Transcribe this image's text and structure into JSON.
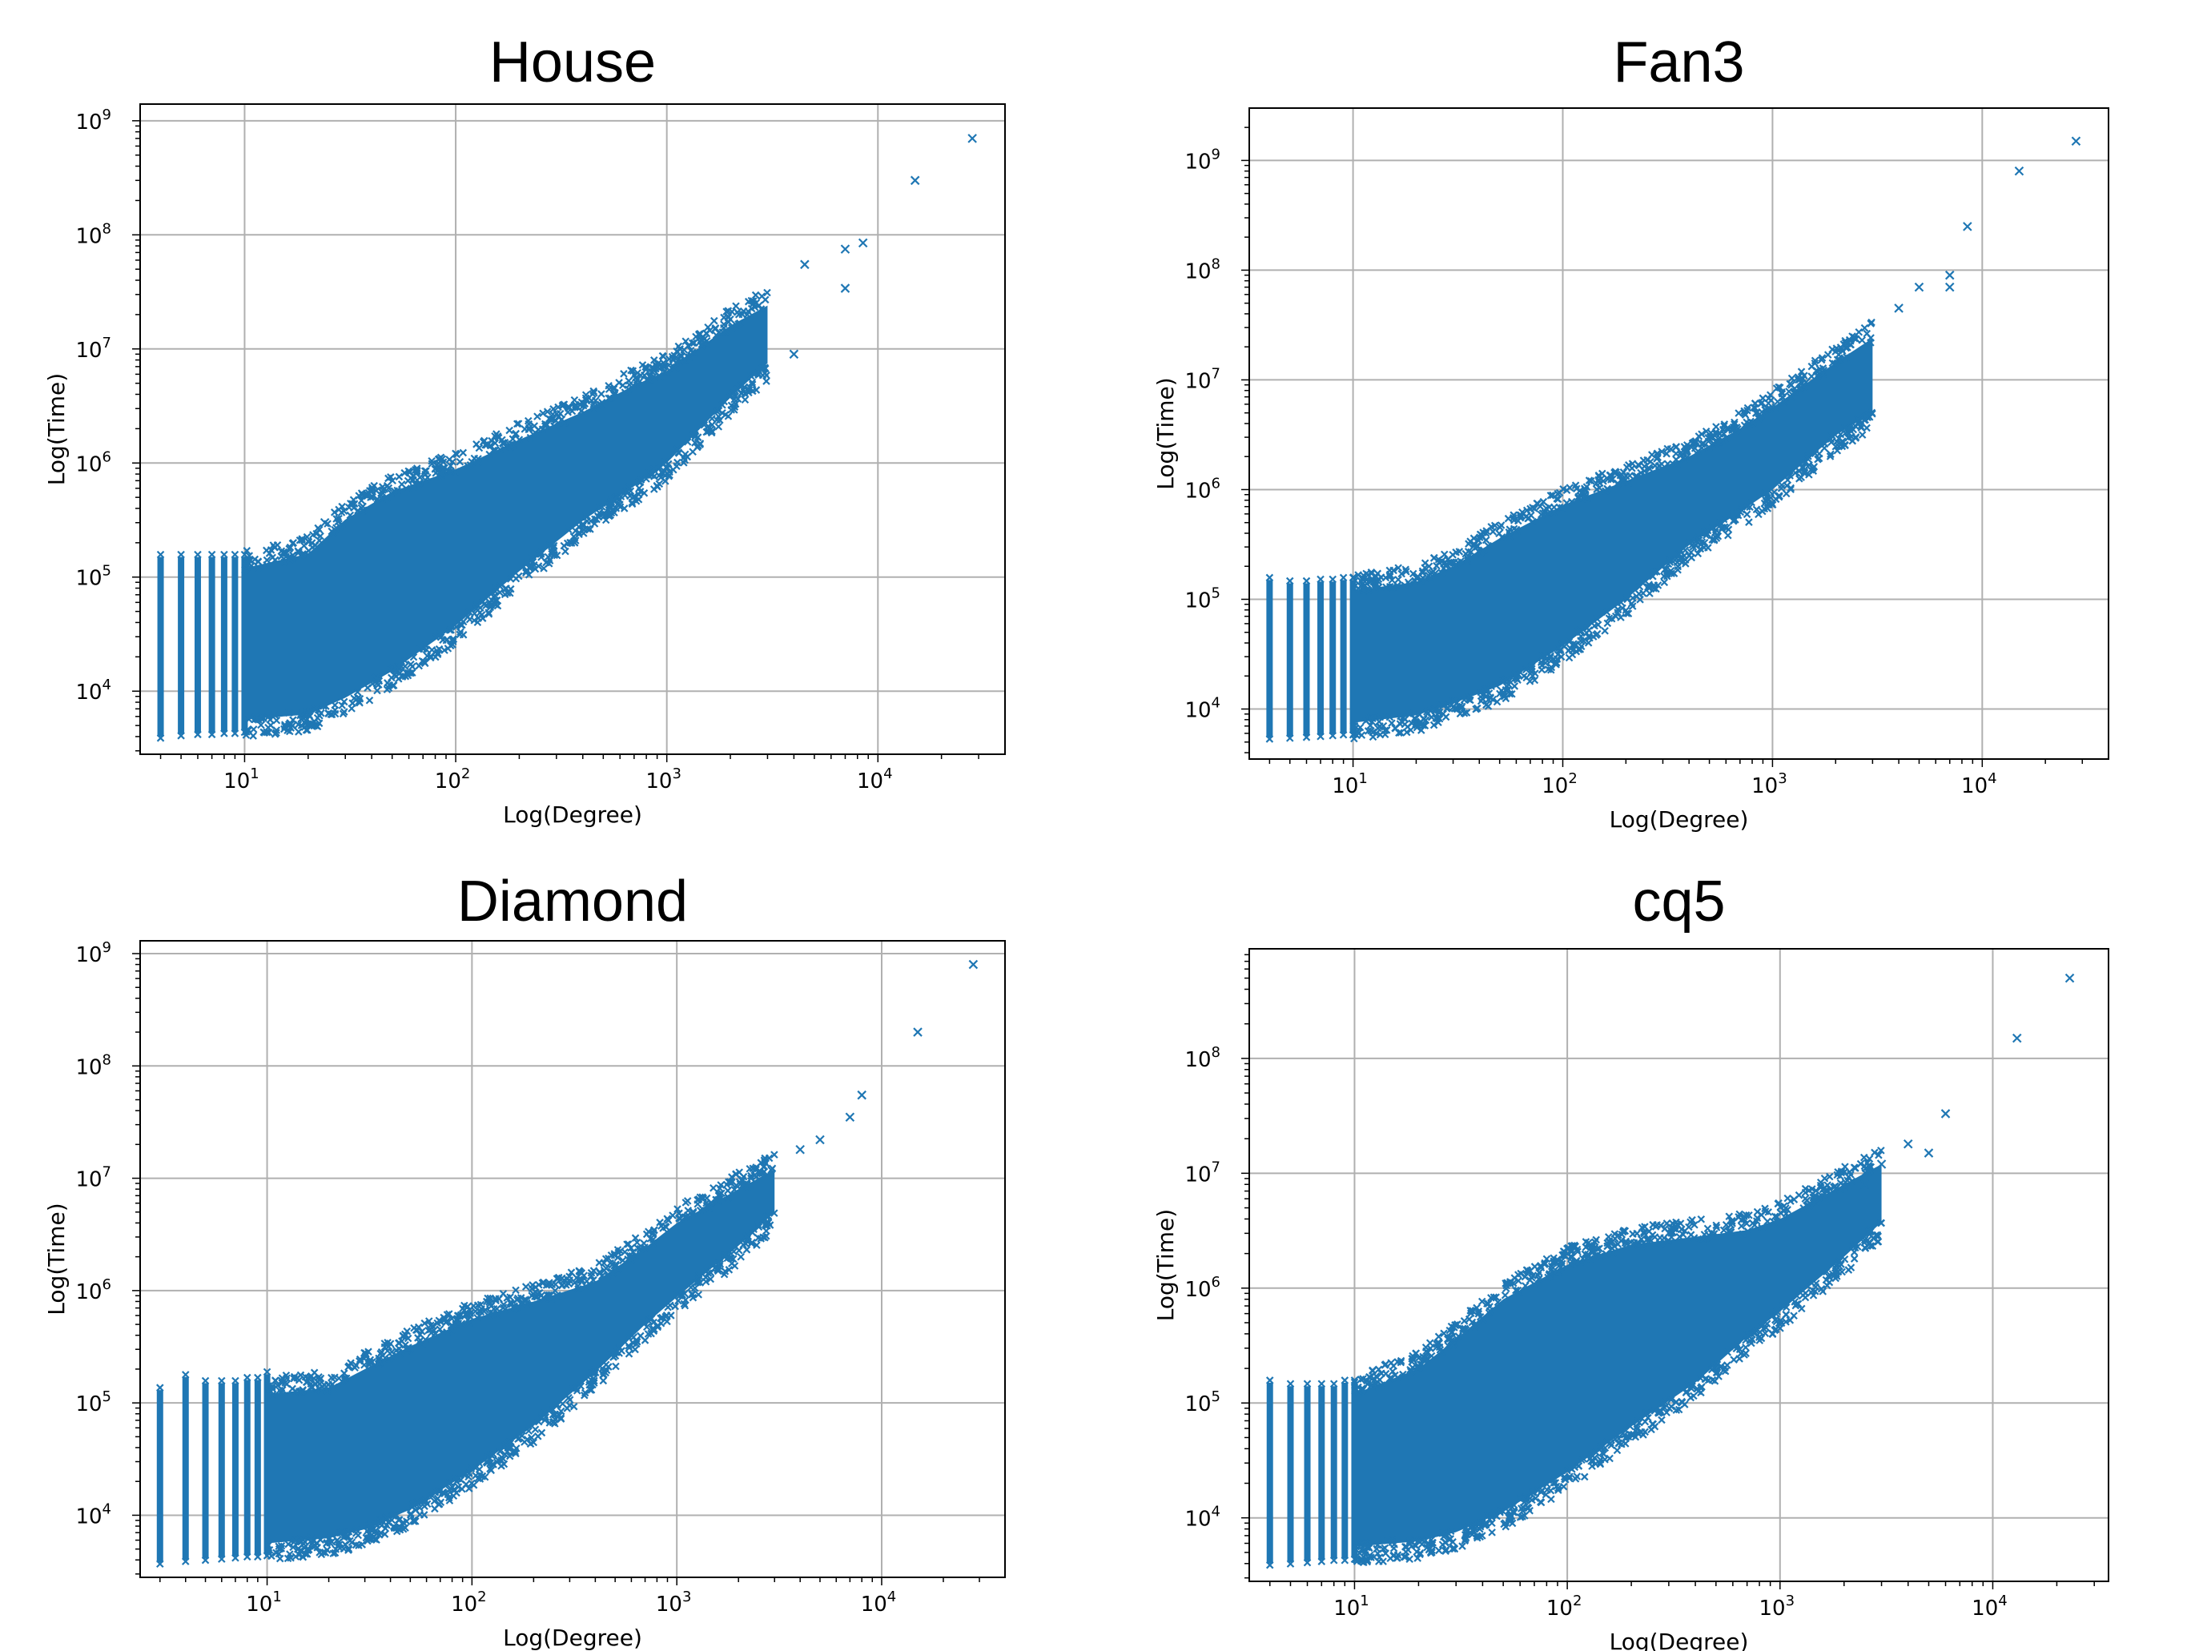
{
  "chart_data": [
    {
      "type": "scatter",
      "title": "House",
      "xlabel": "Log(Degree)",
      "ylabel": "Log(Time)",
      "xscale": "log",
      "yscale": "log",
      "xlim": [
        3.2,
        40000
      ],
      "ylim": [
        2800,
        1400000000
      ],
      "xticks": [
        10,
        100,
        1000,
        10000
      ],
      "xtick_labels": [
        "10",
        "10",
        "10",
        "10"
      ],
      "xtick_exps": [
        "1",
        "2",
        "3",
        "4"
      ],
      "yticks": [
        10000,
        100000,
        1000000,
        10000000,
        100000000,
        1000000000
      ],
      "ytick_labels": [
        "10",
        "10",
        "10",
        "10",
        "10",
        "10"
      ],
      "ytick_exps": [
        "4",
        "5",
        "6",
        "7",
        "8",
        "9"
      ],
      "grid": true,
      "marker": "x",
      "color": "#1f77b4",
      "columns_x": [
        4,
        5,
        6,
        7,
        8,
        9,
        10
      ],
      "column_ranges": [
        [
          4000,
          150000
        ],
        [
          4200,
          150000
        ],
        [
          4300,
          150000
        ],
        [
          4300,
          150000
        ],
        [
          4400,
          150000
        ],
        [
          4400,
          150000
        ],
        [
          4500,
          150000
        ]
      ],
      "band": [
        [
          10,
          4500,
          150000
        ],
        [
          20,
          5000,
          200000
        ],
        [
          30,
          7000,
          400000
        ],
        [
          50,
          12000,
          700000
        ],
        [
          100,
          30000,
          1100000
        ],
        [
          200,
          90000,
          2000000
        ],
        [
          400,
          250000,
          3500000
        ],
        [
          700,
          500000,
          6000000
        ],
        [
          1000,
          800000,
          8000000
        ],
        [
          2000,
          3000000,
          20000000
        ],
        [
          3000,
          6000000,
          30000000
        ]
      ],
      "outliers": [
        [
          15000,
          300000000
        ],
        [
          28000,
          700000000
        ],
        [
          8500,
          85000000
        ],
        [
          7000,
          75000000
        ],
        [
          7000,
          34000000
        ],
        [
          4500,
          55000000
        ],
        [
          4000,
          9000000
        ],
        [
          24,
          300000
        ]
      ]
    },
    {
      "type": "scatter",
      "title": "Fan3",
      "xlabel": "Log(Degree)",
      "ylabel": "Log(Time)",
      "xscale": "log",
      "yscale": "log",
      "xlim": [
        3.2,
        40000
      ],
      "ylim": [
        3500,
        3000000000
      ],
      "xticks": [
        10,
        100,
        1000,
        10000
      ],
      "xtick_labels": [
        "10",
        "10",
        "10",
        "10"
      ],
      "xtick_exps": [
        "1",
        "2",
        "3",
        "4"
      ],
      "yticks": [
        10000,
        100000,
        1000000,
        10000000,
        100000000,
        1000000000
      ],
      "ytick_labels": [
        "10",
        "10",
        "10",
        "10",
        "10",
        "10"
      ],
      "ytick_exps": [
        "4",
        "5",
        "6",
        "7",
        "8",
        "9"
      ],
      "grid": true,
      "marker": "x",
      "color": "#1f77b4",
      "columns_x": [
        4,
        5,
        6,
        7,
        8,
        9,
        10
      ],
      "column_ranges": [
        [
          5500,
          150000
        ],
        [
          5600,
          140000
        ],
        [
          5700,
          140000
        ],
        [
          5800,
          145000
        ],
        [
          5900,
          145000
        ],
        [
          6000,
          150000
        ],
        [
          6000,
          150000
        ]
      ],
      "band": [
        [
          10,
          6000,
          150000
        ],
        [
          20,
          7000,
          180000
        ],
        [
          30,
          9000,
          250000
        ],
        [
          50,
          13000,
          450000
        ],
        [
          100,
          30000,
          900000
        ],
        [
          200,
          80000,
          1500000
        ],
        [
          400,
          250000,
          2500000
        ],
        [
          700,
          500000,
          4500000
        ],
        [
          1000,
          800000,
          7000000
        ],
        [
          2000,
          2500000,
          18000000
        ],
        [
          3000,
          4000000,
          30000000
        ]
      ],
      "outliers": [
        [
          28000,
          1500000000
        ],
        [
          15000,
          800000000
        ],
        [
          8500,
          250000000
        ],
        [
          7000,
          90000000
        ],
        [
          7000,
          70000000
        ],
        [
          5000,
          70000000
        ],
        [
          4000,
          45000000
        ]
      ]
    },
    {
      "type": "scatter",
      "title": "Diamond",
      "xlabel": "Log(Degree)",
      "ylabel": "Log(Time)",
      "xscale": "log",
      "yscale": "log",
      "xlim": [
        2.4,
        40000
      ],
      "ylim": [
        2800,
        1300000000
      ],
      "xticks": [
        10,
        100,
        1000,
        10000
      ],
      "xtick_labels": [
        "10",
        "10",
        "10",
        "10"
      ],
      "xtick_exps": [
        "1",
        "2",
        "3",
        "4"
      ],
      "yticks": [
        10000,
        100000,
        1000000,
        10000000,
        100000000,
        1000000000
      ],
      "ytick_labels": [
        "10",
        "10",
        "10",
        "10",
        "10",
        "10"
      ],
      "ytick_exps": [
        "4",
        "5",
        "6",
        "7",
        "8",
        "9"
      ],
      "grid": true,
      "marker": "x",
      "color": "#1f77b4",
      "columns_x": [
        3,
        4,
        5,
        6,
        7,
        8,
        9,
        10
      ],
      "column_ranges": [
        [
          3800,
          130000
        ],
        [
          4000,
          170000
        ],
        [
          4100,
          150000
        ],
        [
          4200,
          150000
        ],
        [
          4300,
          150000
        ],
        [
          4400,
          160000
        ],
        [
          4400,
          160000
        ],
        [
          4500,
          180000
        ]
      ],
      "band": [
        [
          10,
          4500,
          150000
        ],
        [
          20,
          5000,
          170000
        ],
        [
          30,
          6000,
          250000
        ],
        [
          50,
          9000,
          400000
        ],
        [
          100,
          20000,
          700000
        ],
        [
          200,
          50000,
          1000000
        ],
        [
          400,
          150000,
          1500000
        ],
        [
          700,
          400000,
          3000000
        ],
        [
          1000,
          700000,
          5000000
        ],
        [
          2000,
          2000000,
          10000000
        ],
        [
          3000,
          4000000,
          15000000
        ]
      ],
      "outliers": [
        [
          28000,
          800000000
        ],
        [
          15000,
          200000000
        ],
        [
          8000,
          55000000
        ],
        [
          7000,
          35000000
        ],
        [
          5000,
          22000000
        ],
        [
          4000,
          18000000
        ],
        [
          15,
          6000
        ],
        [
          22,
          6000
        ]
      ]
    },
    {
      "type": "scatter",
      "title": "cq5",
      "xlabel": "Log(Degree)",
      "ylabel": "Log(Time)",
      "xscale": "log",
      "yscale": "log",
      "xlim": [
        3.2,
        35000
      ],
      "ylim": [
        2800,
        900000000
      ],
      "xticks": [
        10,
        100,
        1000,
        10000
      ],
      "xtick_labels": [
        "10",
        "10",
        "10",
        "10"
      ],
      "xtick_exps": [
        "1",
        "2",
        "3",
        "4"
      ],
      "yticks": [
        10000,
        100000,
        1000000,
        10000000,
        100000000
      ],
      "ytick_labels": [
        "10",
        "10",
        "10",
        "10",
        "10"
      ],
      "ytick_exps": [
        "4",
        "5",
        "6",
        "7",
        "8"
      ],
      "grid": true,
      "marker": "x",
      "color": "#1f77b4",
      "columns_x": [
        4,
        5,
        6,
        7,
        8,
        9,
        10
      ],
      "column_ranges": [
        [
          4000,
          150000
        ],
        [
          4100,
          140000
        ],
        [
          4200,
          140000
        ],
        [
          4300,
          140000
        ],
        [
          4400,
          140000
        ],
        [
          4400,
          150000
        ],
        [
          4500,
          150000
        ]
      ],
      "band": [
        [
          10,
          4500,
          150000
        ],
        [
          20,
          5000,
          250000
        ],
        [
          30,
          6000,
          450000
        ],
        [
          50,
          9000,
          1000000
        ],
        [
          100,
          20000,
          2000000
        ],
        [
          200,
          50000,
          3000000
        ],
        [
          400,
          120000,
          3500000
        ],
        [
          700,
          300000,
          4000000
        ],
        [
          1000,
          500000,
          5000000
        ],
        [
          2000,
          1500000,
          10000000
        ],
        [
          3000,
          3000000,
          15000000
        ]
      ],
      "outliers": [
        [
          23000,
          500000000
        ],
        [
          13000,
          150000000
        ],
        [
          6000,
          33000000
        ],
        [
          5000,
          15000000
        ],
        [
          4000,
          18000000
        ],
        [
          3000,
          12000000
        ],
        [
          2500,
          8000000
        ]
      ]
    }
  ]
}
